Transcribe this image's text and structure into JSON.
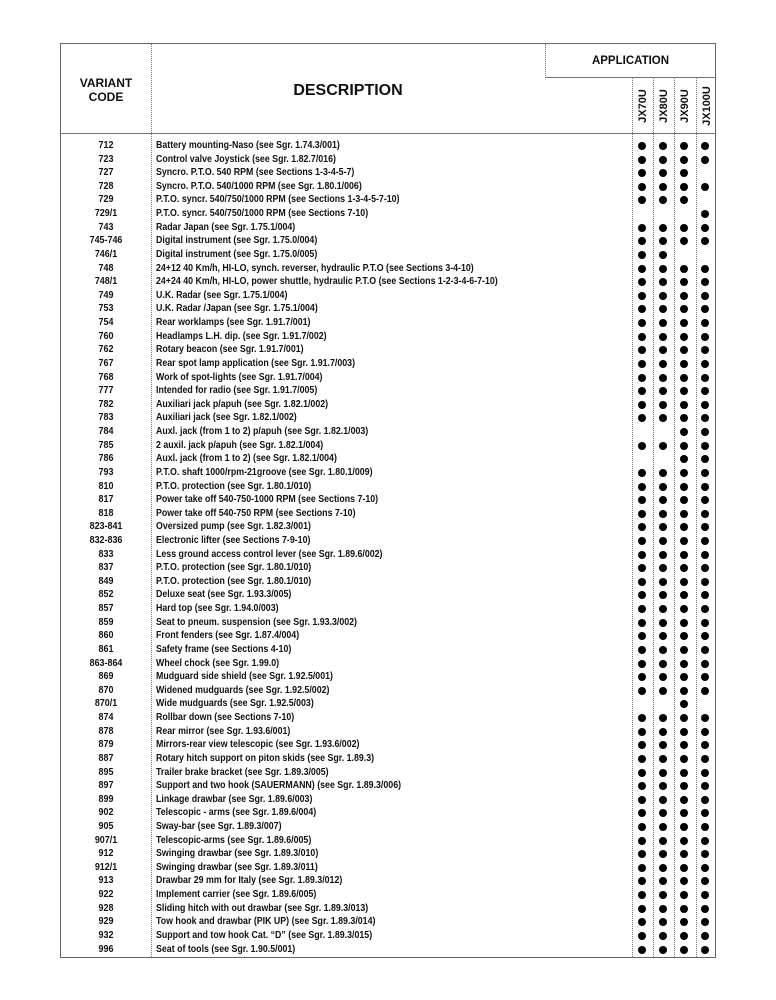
{
  "header": {
    "variant_code": "VARIANT CODE",
    "description": "DESCRIPTION",
    "application": "APPLICATION",
    "models": [
      "JX70U",
      "JX80U",
      "JX90U",
      "JX100U"
    ]
  },
  "dot_color": "#000000",
  "rows": [
    {
      "code": "712",
      "desc": "Battery mounting-Naso (see Sgr. 1.74.3/001)",
      "app": [
        1,
        1,
        1,
        1
      ]
    },
    {
      "code": "723",
      "desc": "Control valve Joystick (see Sgr. 1.82.7/016)",
      "app": [
        1,
        1,
        1,
        1
      ]
    },
    {
      "code": "727",
      "desc": "Syncro. P.T.O. 540 RPM (see Sections 1-3-4-5-7)",
      "app": [
        1,
        1,
        1,
        0
      ]
    },
    {
      "code": "728",
      "desc": "Syncro. P.T.O. 540/1000 RPM (see Sgr. 1.80.1/006)",
      "app": [
        1,
        1,
        1,
        1
      ]
    },
    {
      "code": "729",
      "desc": "P.T.O. syncr. 540/750/1000 RPM (see Sections 1-3-4-5-7-10)",
      "app": [
        1,
        1,
        1,
        0
      ]
    },
    {
      "code": "729/1",
      "desc": "P.T.O. syncr. 540/750/1000 RPM (see Sections 7-10)",
      "app": [
        0,
        0,
        0,
        1
      ]
    },
    {
      "code": "743",
      "desc": "Radar Japan (see Sgr. 1.75.1/004)",
      "app": [
        1,
        1,
        1,
        1
      ]
    },
    {
      "code": "745-746",
      "desc": "Digital instrument (see Sgr. 1.75.0/004)",
      "app": [
        1,
        1,
        1,
        1
      ]
    },
    {
      "code": "746/1",
      "desc": "Digital instrument (see Sgr. 1.75.0/005)",
      "app": [
        1,
        1,
        0,
        0
      ]
    },
    {
      "code": "748",
      "desc": "24+12 40 Km/h, HI-LO, synch. reverser, hydraulic P.T.O (see Sections 3-4-10)",
      "app": [
        1,
        1,
        1,
        1
      ]
    },
    {
      "code": "748/1",
      "desc": "24+24 40 Km/h, HI-LO, power shuttle, hydraulic P.T.O (see Sections 1-2-3-4-6-7-10)",
      "app": [
        1,
        1,
        1,
        1
      ]
    },
    {
      "code": "749",
      "desc": "U.K. Radar (see Sgr. 1.75.1/004)",
      "app": [
        1,
        1,
        1,
        1
      ]
    },
    {
      "code": "753",
      "desc": "U.K. Radar /Japan (see Sgr. 1.75.1/004)",
      "app": [
        1,
        1,
        1,
        1
      ]
    },
    {
      "code": "754",
      "desc": "Rear worklamps (see Sgr. 1.91.7/001)",
      "app": [
        1,
        1,
        1,
        1
      ]
    },
    {
      "code": "760",
      "desc": "Headlamps L.H. dip. (see Sgr. 1.91.7/002)",
      "app": [
        1,
        1,
        1,
        1
      ]
    },
    {
      "code": "762",
      "desc": "Rotary beacon (see Sgr. 1.91.7/001)",
      "app": [
        1,
        1,
        1,
        1
      ]
    },
    {
      "code": "767",
      "desc": "Rear spot lamp application (see Sgr. 1.91.7/003)",
      "app": [
        1,
        1,
        1,
        1
      ]
    },
    {
      "code": "768",
      "desc": "Work of spot-lights (see Sgr. 1.91.7/004)",
      "app": [
        1,
        1,
        1,
        1
      ]
    },
    {
      "code": "777",
      "desc": "Intended for radio (see Sgr. 1.91.7/005)",
      "app": [
        1,
        1,
        1,
        1
      ]
    },
    {
      "code": "782",
      "desc": "Auxiliari jack p/apuh (see Sgr. 1.82.1/002)",
      "app": [
        1,
        1,
        1,
        1
      ]
    },
    {
      "code": "783",
      "desc": "Auxiliari jack (see Sgr. 1.82.1/002)",
      "app": [
        1,
        1,
        1,
        1
      ]
    },
    {
      "code": "784",
      "desc": "Auxl. jack (from 1 to 2) p/apuh (see Sgr. 1.82.1/003)",
      "app": [
        0,
        0,
        1,
        1
      ]
    },
    {
      "code": "785",
      "desc": "2 auxil. jack p/apuh (see Sgr. 1.82.1/004)",
      "app": [
        1,
        1,
        1,
        1
      ]
    },
    {
      "code": "786",
      "desc": "Auxl. jack (from 1 to 2) (see Sgr. 1.82.1/004)",
      "app": [
        0,
        0,
        1,
        1
      ]
    },
    {
      "code": "793",
      "desc": "P.T.O. shaft 1000/rpm-21groove (see Sgr. 1.80.1/009)",
      "app": [
        1,
        1,
        1,
        1
      ]
    },
    {
      "code": "810",
      "desc": "P.T.O. protection (see Sgr. 1.80.1/010)",
      "app": [
        1,
        1,
        1,
        1
      ]
    },
    {
      "code": "817",
      "desc": "Power take off 540-750-1000 RPM (see Sections 7-10)",
      "app": [
        1,
        1,
        1,
        1
      ]
    },
    {
      "code": "818",
      "desc": "Power take off 540-750 RPM (see Sections 7-10)",
      "app": [
        1,
        1,
        1,
        1
      ]
    },
    {
      "code": "823-841",
      "desc": "Oversized pump (see Sgr. 1.82.3/001)",
      "app": [
        1,
        1,
        1,
        1
      ]
    },
    {
      "code": "832-836",
      "desc": "Electronic lifter (see Sections 7-9-10)",
      "app": [
        1,
        1,
        1,
        1
      ]
    },
    {
      "code": "833",
      "desc": "Less ground access control lever (see Sgr. 1.89.6/002)",
      "app": [
        1,
        1,
        1,
        1
      ]
    },
    {
      "code": "837",
      "desc": "P.T.O. protection (see Sgr. 1.80.1/010)",
      "app": [
        1,
        1,
        1,
        1
      ]
    },
    {
      "code": "849",
      "desc": "P.T.O. protection (see Sgr. 1.80.1/010)",
      "app": [
        1,
        1,
        1,
        1
      ]
    },
    {
      "code": "852",
      "desc": "Deluxe seat (see Sgr. 1.93.3/005)",
      "app": [
        1,
        1,
        1,
        1
      ]
    },
    {
      "code": "857",
      "desc": "Hard top (see Sgr. 1.94.0/003)",
      "app": [
        1,
        1,
        1,
        1
      ]
    },
    {
      "code": "859",
      "desc": "Seat to pneum. suspension (see Sgr. 1.93.3/002)",
      "app": [
        1,
        1,
        1,
        1
      ]
    },
    {
      "code": "860",
      "desc": "Front fenders (see Sgr. 1.87.4/004)",
      "app": [
        1,
        1,
        1,
        1
      ]
    },
    {
      "code": "861",
      "desc": "Safety frame (see Sections 4-10)",
      "app": [
        1,
        1,
        1,
        1
      ]
    },
    {
      "code": "863-864",
      "desc": "Wheel chock (see Sgr. 1.99.0)",
      "app": [
        1,
        1,
        1,
        1
      ]
    },
    {
      "code": "869",
      "desc": "Mudguard side shield (see Sgr. 1.92.5/001)",
      "app": [
        1,
        1,
        1,
        1
      ]
    },
    {
      "code": "870",
      "desc": "Widened mudguards (see Sgr. 1.92.5/002)",
      "app": [
        1,
        1,
        1,
        1
      ]
    },
    {
      "code": "870/1",
      "desc": "Wide mudguards (see Sgr. 1.92.5/003)",
      "app": [
        0,
        0,
        1,
        0
      ]
    },
    {
      "code": "874",
      "desc": "Rollbar down (see Sections 7-10)",
      "app": [
        1,
        1,
        1,
        1
      ]
    },
    {
      "code": "878",
      "desc": "Rear mirror (see Sgr. 1.93.6/001)",
      "app": [
        1,
        1,
        1,
        1
      ]
    },
    {
      "code": "879",
      "desc": "Mirrors-rear view telescopic (see Sgr. 1.93.6/002)",
      "app": [
        1,
        1,
        1,
        1
      ]
    },
    {
      "code": "887",
      "desc": "Rotary hitch support on piton skids (see Sgr. 1.89.3)",
      "app": [
        1,
        1,
        1,
        1
      ]
    },
    {
      "code": "895",
      "desc": "Trailer brake bracket (see Sgr. 1.89.3/005)",
      "app": [
        1,
        1,
        1,
        1
      ]
    },
    {
      "code": "897",
      "desc": "Support and two hook (SAUERMANN) (see Sgr. 1.89.3/006)",
      "app": [
        1,
        1,
        1,
        1
      ]
    },
    {
      "code": "899",
      "desc": "Linkage drawbar (see Sgr. 1.89.6/003)",
      "app": [
        1,
        1,
        1,
        1
      ]
    },
    {
      "code": "902",
      "desc": "Telescopic - arms (see Sgr. 1.89.6/004)",
      "app": [
        1,
        1,
        1,
        1
      ]
    },
    {
      "code": "905",
      "desc": "Sway-bar (see Sgr. 1.89.3/007)",
      "app": [
        1,
        1,
        1,
        1
      ]
    },
    {
      "code": "907/1",
      "desc": "Telescopic-arms (see Sgr. 1.89.6/005)",
      "app": [
        1,
        1,
        1,
        1
      ]
    },
    {
      "code": "912",
      "desc": "Swinging drawbar (see Sgr. 1.89.3/010)",
      "app": [
        1,
        1,
        1,
        1
      ]
    },
    {
      "code": "912/1",
      "desc": "Swinging drawbar (see Sgr. 1.89.3/011)",
      "app": [
        1,
        1,
        1,
        1
      ]
    },
    {
      "code": "913",
      "desc": "Drawbar 29 mm for Italy (see Sgr. 1.89.3/012)",
      "app": [
        1,
        1,
        1,
        1
      ]
    },
    {
      "code": "922",
      "desc": "Implement carrier (see Sgr. 1.89.6/005)",
      "app": [
        1,
        1,
        1,
        1
      ]
    },
    {
      "code": "928",
      "desc": "Sliding hitch with out drawbar (see Sgr. 1.89.3/013)",
      "app": [
        1,
        1,
        1,
        1
      ]
    },
    {
      "code": "929",
      "desc": "Tow hook and drawbar (PIK UP) (see Sgr. 1.89.3/014)",
      "app": [
        1,
        1,
        1,
        1
      ]
    },
    {
      "code": "932",
      "desc": "Support and tow hook Cat. “D” (see Sgr. 1.89.3/015)",
      "app": [
        1,
        1,
        1,
        1
      ]
    },
    {
      "code": "996",
      "desc": "Seat of tools (see Sgr. 1.90.5/001)",
      "app": [
        1,
        1,
        1,
        1
      ]
    }
  ]
}
